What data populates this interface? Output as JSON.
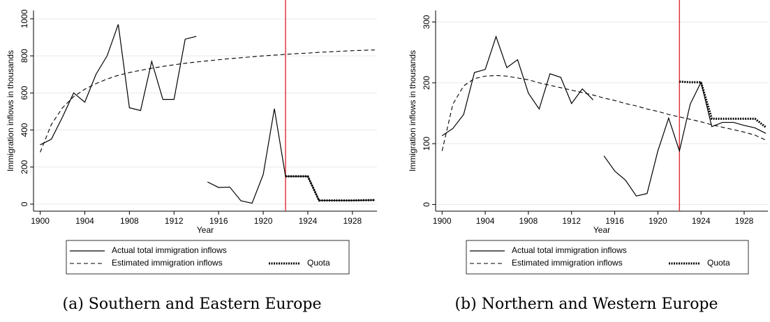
{
  "chart_data": [
    {
      "type": "line",
      "caption": "(a) Southern and Eastern Europe",
      "xlabel": "Year",
      "ylabel": "Immigration inflows in thousands",
      "xlim": [
        1899.4,
        1930.2
      ],
      "xticks": [
        1900,
        1904,
        1908,
        1912,
        1916,
        1920,
        1924,
        1928
      ],
      "ylim": [
        -38,
        1045
      ],
      "yticks": [
        0,
        200,
        400,
        600,
        800,
        1000
      ],
      "grid": true,
      "vline": 1922,
      "vline_color": "#e0383e",
      "series": [
        {
          "name": "Actual total immigration inflows",
          "color": "#000000",
          "style": "solid",
          "x": [
            1900,
            1901,
            1902,
            1903,
            1904,
            1905,
            1906,
            1907,
            1908,
            1909,
            1910,
            1911,
            1912,
            1913,
            1914,
            null,
            1915,
            1916,
            1917,
            1918,
            1919,
            1920,
            1921,
            1922,
            1923,
            1924,
            1925,
            1926,
            1927,
            1928,
            1929,
            1930
          ],
          "values": [
            320,
            350,
            470,
            600,
            550,
            700,
            800,
            970,
            520,
            505,
            770,
            565,
            565,
            890,
            905,
            null,
            120,
            90,
            92,
            18,
            5,
            160,
            515,
            150,
            150,
            150,
            20,
            20,
            20,
            20,
            21,
            22
          ]
        },
        {
          "name": "Estimated immigration inflows",
          "color": "#000000",
          "style": "dashed",
          "x": [
            1900,
            1901,
            1902,
            1903,
            1904,
            1905,
            1906,
            1907,
            1908,
            1909,
            1910,
            1911,
            1912,
            1913,
            1914,
            1915,
            1916,
            1917,
            1918,
            1919,
            1920,
            1921,
            1922,
            1923,
            1924,
            1925,
            1926,
            1927,
            1928,
            1929,
            1930
          ],
          "values": [
            280,
            430,
            520,
            580,
            620,
            650,
            675,
            695,
            710,
            722,
            733,
            743,
            752,
            760,
            767,
            773,
            779,
            785,
            790,
            795,
            800,
            804,
            808,
            812,
            815,
            819,
            822,
            825,
            828,
            830,
            832
          ]
        },
        {
          "name": "Quota",
          "color": "#000000",
          "style": "dotted",
          "x": [
            1922,
            1923,
            1924,
            1925,
            1926,
            1927,
            1928,
            1929,
            1930
          ],
          "values": [
            150,
            150,
            150,
            20,
            20,
            20,
            20,
            21,
            22
          ]
        }
      ]
    },
    {
      "type": "line",
      "caption": "(b) Northern and Western Europe",
      "xlabel": "Year",
      "ylabel": "Immigration inflows in thousands",
      "xlim": [
        1899.4,
        1930.2
      ],
      "xticks": [
        1900,
        1904,
        1908,
        1912,
        1916,
        1920,
        1924,
        1928
      ],
      "ylim": [
        -11,
        319
      ],
      "yticks": [
        0,
        100,
        200,
        300
      ],
      "grid": true,
      "vline": 1922,
      "vline_color": "#e0383e",
      "series": [
        {
          "name": "Actual total immigration inflows",
          "color": "#000000",
          "style": "solid",
          "x": [
            1900,
            1901,
            1902,
            1903,
            1904,
            1905,
            1906,
            1907,
            1908,
            1909,
            1910,
            1911,
            1912,
            1913,
            1914,
            null,
            1915,
            1916,
            1917,
            1918,
            1919,
            1920,
            1921,
            1922,
            1923,
            1924,
            1925,
            1926,
            1927,
            1928,
            1929,
            1930
          ],
          "values": [
            113,
            125,
            148,
            217,
            222,
            276,
            225,
            238,
            183,
            157,
            215,
            209,
            166,
            190,
            172,
            null,
            80,
            55,
            40,
            14,
            18,
            88,
            142,
            88,
            165,
            201,
            128,
            135,
            135,
            130,
            126,
            117
          ]
        },
        {
          "name": "Estimated immigration inflows",
          "color": "#000000",
          "style": "dashed",
          "x": [
            1900,
            1901,
            1902,
            1903,
            1904,
            1905,
            1906,
            1907,
            1908,
            1909,
            1910,
            1911,
            1912,
            1913,
            1914,
            1915,
            1916,
            1917,
            1918,
            1919,
            1920,
            1921,
            1922,
            1923,
            1924,
            1925,
            1926,
            1927,
            1928,
            1929,
            1930
          ],
          "values": [
            88,
            165,
            195,
            207,
            211,
            212,
            211,
            208,
            205,
            200,
            196,
            192,
            188,
            184,
            180,
            175,
            171,
            166,
            162,
            157,
            153,
            148,
            144,
            140,
            136,
            131,
            127,
            123,
            119,
            114,
            106
          ]
        },
        {
          "name": "Quota",
          "color": "#000000",
          "style": "dotted",
          "x": [
            1922,
            1923,
            1924,
            1925,
            1926,
            1927,
            1928,
            1929,
            1930
          ],
          "values": [
            202,
            201,
            201,
            141,
            141,
            141,
            141,
            141,
            127
          ]
        }
      ]
    }
  ]
}
